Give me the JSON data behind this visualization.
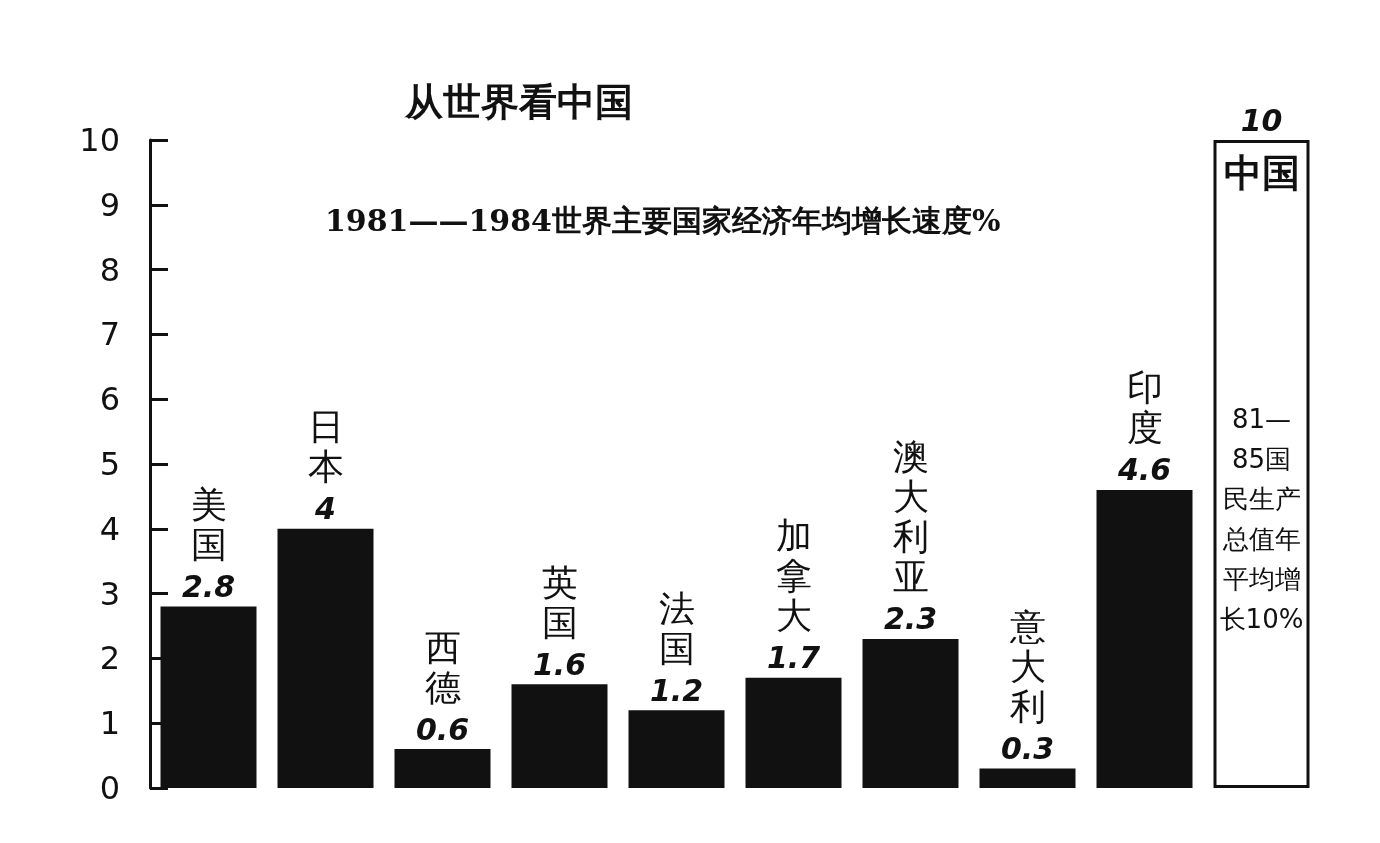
{
  "chart_data": {
    "type": "bar",
    "title": "从世界看中国",
    "subtitle": "1981——1984世界主要国家经济年均增长速度%",
    "categories": [
      "美国",
      "日本",
      "西德",
      "英国",
      "法国",
      "加拿大",
      "澳大利亚",
      "意大利",
      "印度",
      "中国"
    ],
    "values": [
      2.8,
      4,
      0.6,
      1.6,
      1.2,
      1.7,
      2.3,
      0.3,
      4.6,
      10
    ],
    "colors": [
      "#111111",
      "#111111",
      "#111111",
      "#111111",
      "#111111",
      "#111111",
      "#111111",
      "#111111",
      "#111111",
      "#ffffff"
    ],
    "data_labels": true,
    "annotations": [
      "81—85国民生产总值年平均增长10%"
    ],
    "ylim": [
      0,
      10
    ],
    "yticks": [
      0,
      1,
      2,
      3,
      4,
      5,
      6,
      7,
      8,
      9,
      10
    ],
    "grid": false,
    "tick_labels": "y"
  }
}
